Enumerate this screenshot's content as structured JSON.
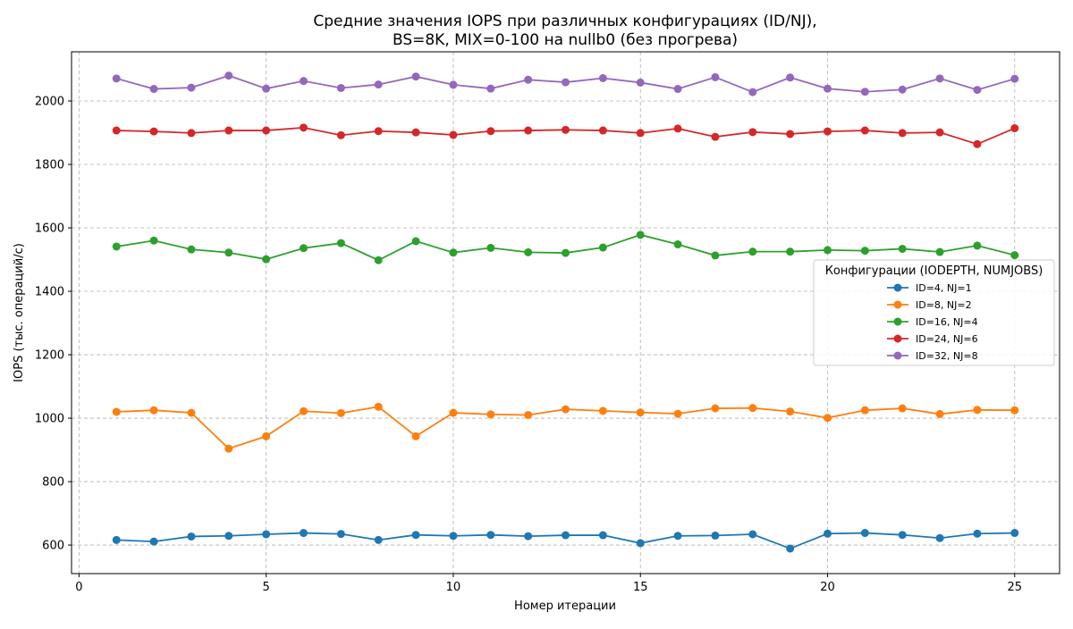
{
  "chart_data": {
    "type": "line",
    "title": [
      "Средние значения IOPS при различных конфигурациях (ID/NJ),",
      "BS=8K, MIX=0-100 на nullb0 (без прогрева)"
    ],
    "xlabel": "Номер итерации",
    "ylabel": "IOPS (тыс. операций/с)",
    "xlim": [
      -0.2,
      26.2
    ],
    "ylim": [
      510,
      2155
    ],
    "xticks": [
      0,
      5,
      10,
      15,
      20,
      25
    ],
    "yticks": [
      600,
      800,
      1000,
      1200,
      1400,
      1600,
      1800,
      2000
    ],
    "grid": true,
    "legend_title": "Конфигурации (IODEPTH, NUMJOBS)",
    "legend_position": "center-right",
    "x": [
      1,
      2,
      3,
      4,
      5,
      6,
      7,
      8,
      9,
      10,
      11,
      12,
      13,
      14,
      15,
      16,
      17,
      18,
      19,
      20,
      21,
      22,
      23,
      24,
      25
    ],
    "series": [
      {
        "name": "ID=4, NJ=1",
        "color": "#1f77b4",
        "values": [
          616,
          611,
          627,
          629,
          634,
          638,
          635,
          616,
          632,
          629,
          632,
          628,
          631,
          631,
          606,
          629,
          630,
          634,
          589,
          636,
          638,
          632,
          622,
          636,
          638
        ]
      },
      {
        "name": "ID=8, NJ=2",
        "color": "#ff7f0e",
        "values": [
          1020,
          1025,
          1017,
          904,
          943,
          1022,
          1016,
          1036,
          943,
          1017,
          1012,
          1010,
          1028,
          1023,
          1018,
          1014,
          1031,
          1032,
          1021,
          1001,
          1025,
          1031,
          1013,
          1026,
          1025
        ]
      },
      {
        "name": "ID=16, NJ=4",
        "color": "#2ca02c",
        "values": [
          1541,
          1560,
          1532,
          1522,
          1501,
          1536,
          1552,
          1498,
          1558,
          1522,
          1537,
          1523,
          1521,
          1538,
          1578,
          1548,
          1513,
          1525,
          1525,
          1530,
          1528,
          1534,
          1524,
          1544,
          1514
        ]
      },
      {
        "name": "ID=24, NJ=6",
        "color": "#d62728",
        "values": [
          1907,
          1904,
          1899,
          1907,
          1907,
          1916,
          1892,
          1905,
          1901,
          1893,
          1905,
          1907,
          1909,
          1907,
          1899,
          1913,
          1887,
          1902,
          1896,
          1904,
          1907,
          1899,
          1901,
          1864,
          1914
        ]
      },
      {
        "name": "ID=32, NJ=8",
        "color": "#9467bd",
        "values": [
          2071,
          2038,
          2042,
          2080,
          2039,
          2063,
          2041,
          2052,
          2077,
          2051,
          2039,
          2067,
          2059,
          2072,
          2058,
          2038,
          2075,
          2028,
          2074,
          2039,
          2029,
          2036,
          2071,
          2035,
          2070
        ]
      }
    ]
  }
}
